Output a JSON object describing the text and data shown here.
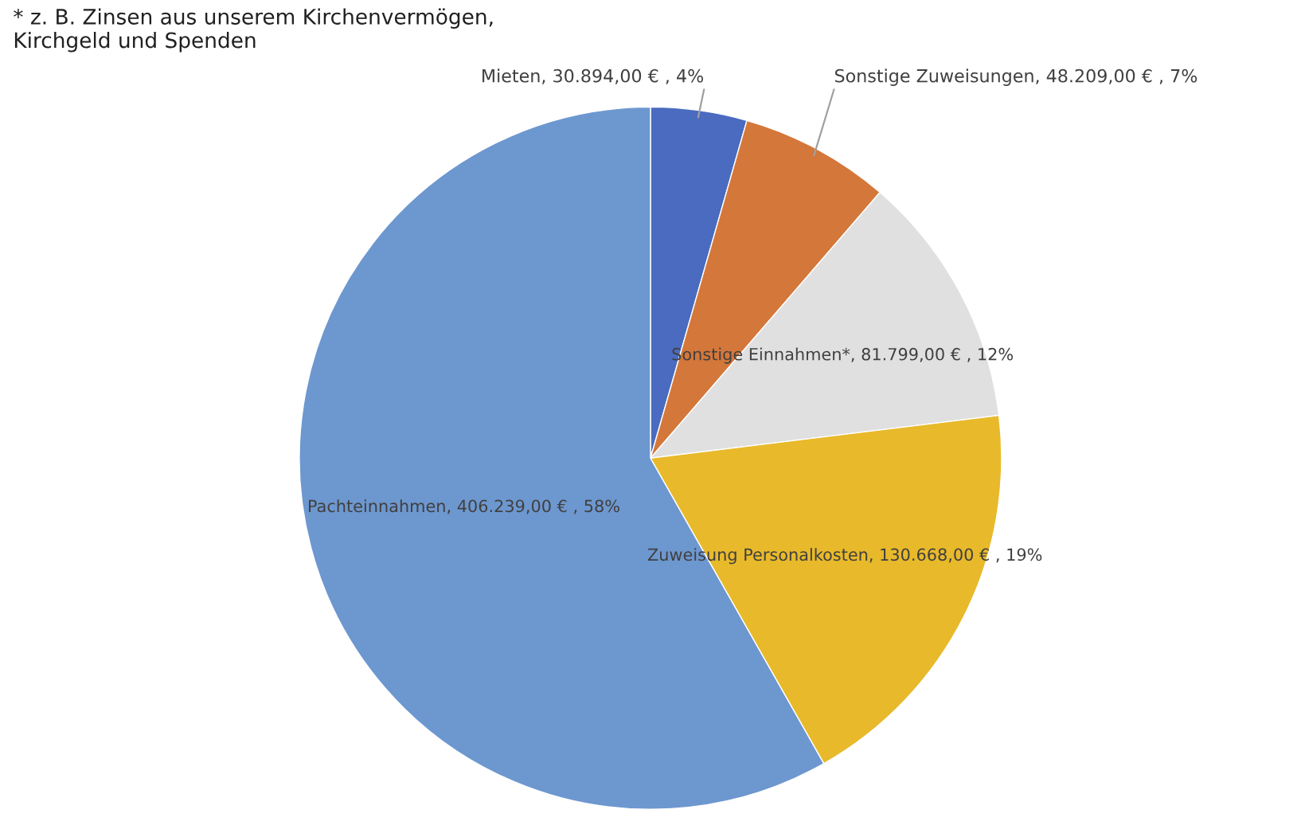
{
  "chart_data": {
    "type": "pie",
    "categories": [
      "Mieten",
      "Sonstige Zuweisungen",
      "Sonstige Einnahmen*",
      "Zuweisung Personalkosten",
      "Pachteinnahmen"
    ],
    "values": [
      30894,
      48209,
      81799,
      130668,
      406239
    ],
    "value_labels": [
      "30.894,00 € , 4%",
      "48.209,00 € , 7%",
      "81.799,00 € , 12%",
      "130.668,00 € , 19%",
      "406.239,00 € , 58%"
    ],
    "colors": [
      "#4a6bbf",
      "#d4773a",
      "#e0e0e0",
      "#e8b92a",
      "#6d97cf"
    ],
    "annotations": [
      "* z. B. Zinsen aus unserem Kirchenvermögen,\nKirchgeld und Spenden"
    ]
  }
}
